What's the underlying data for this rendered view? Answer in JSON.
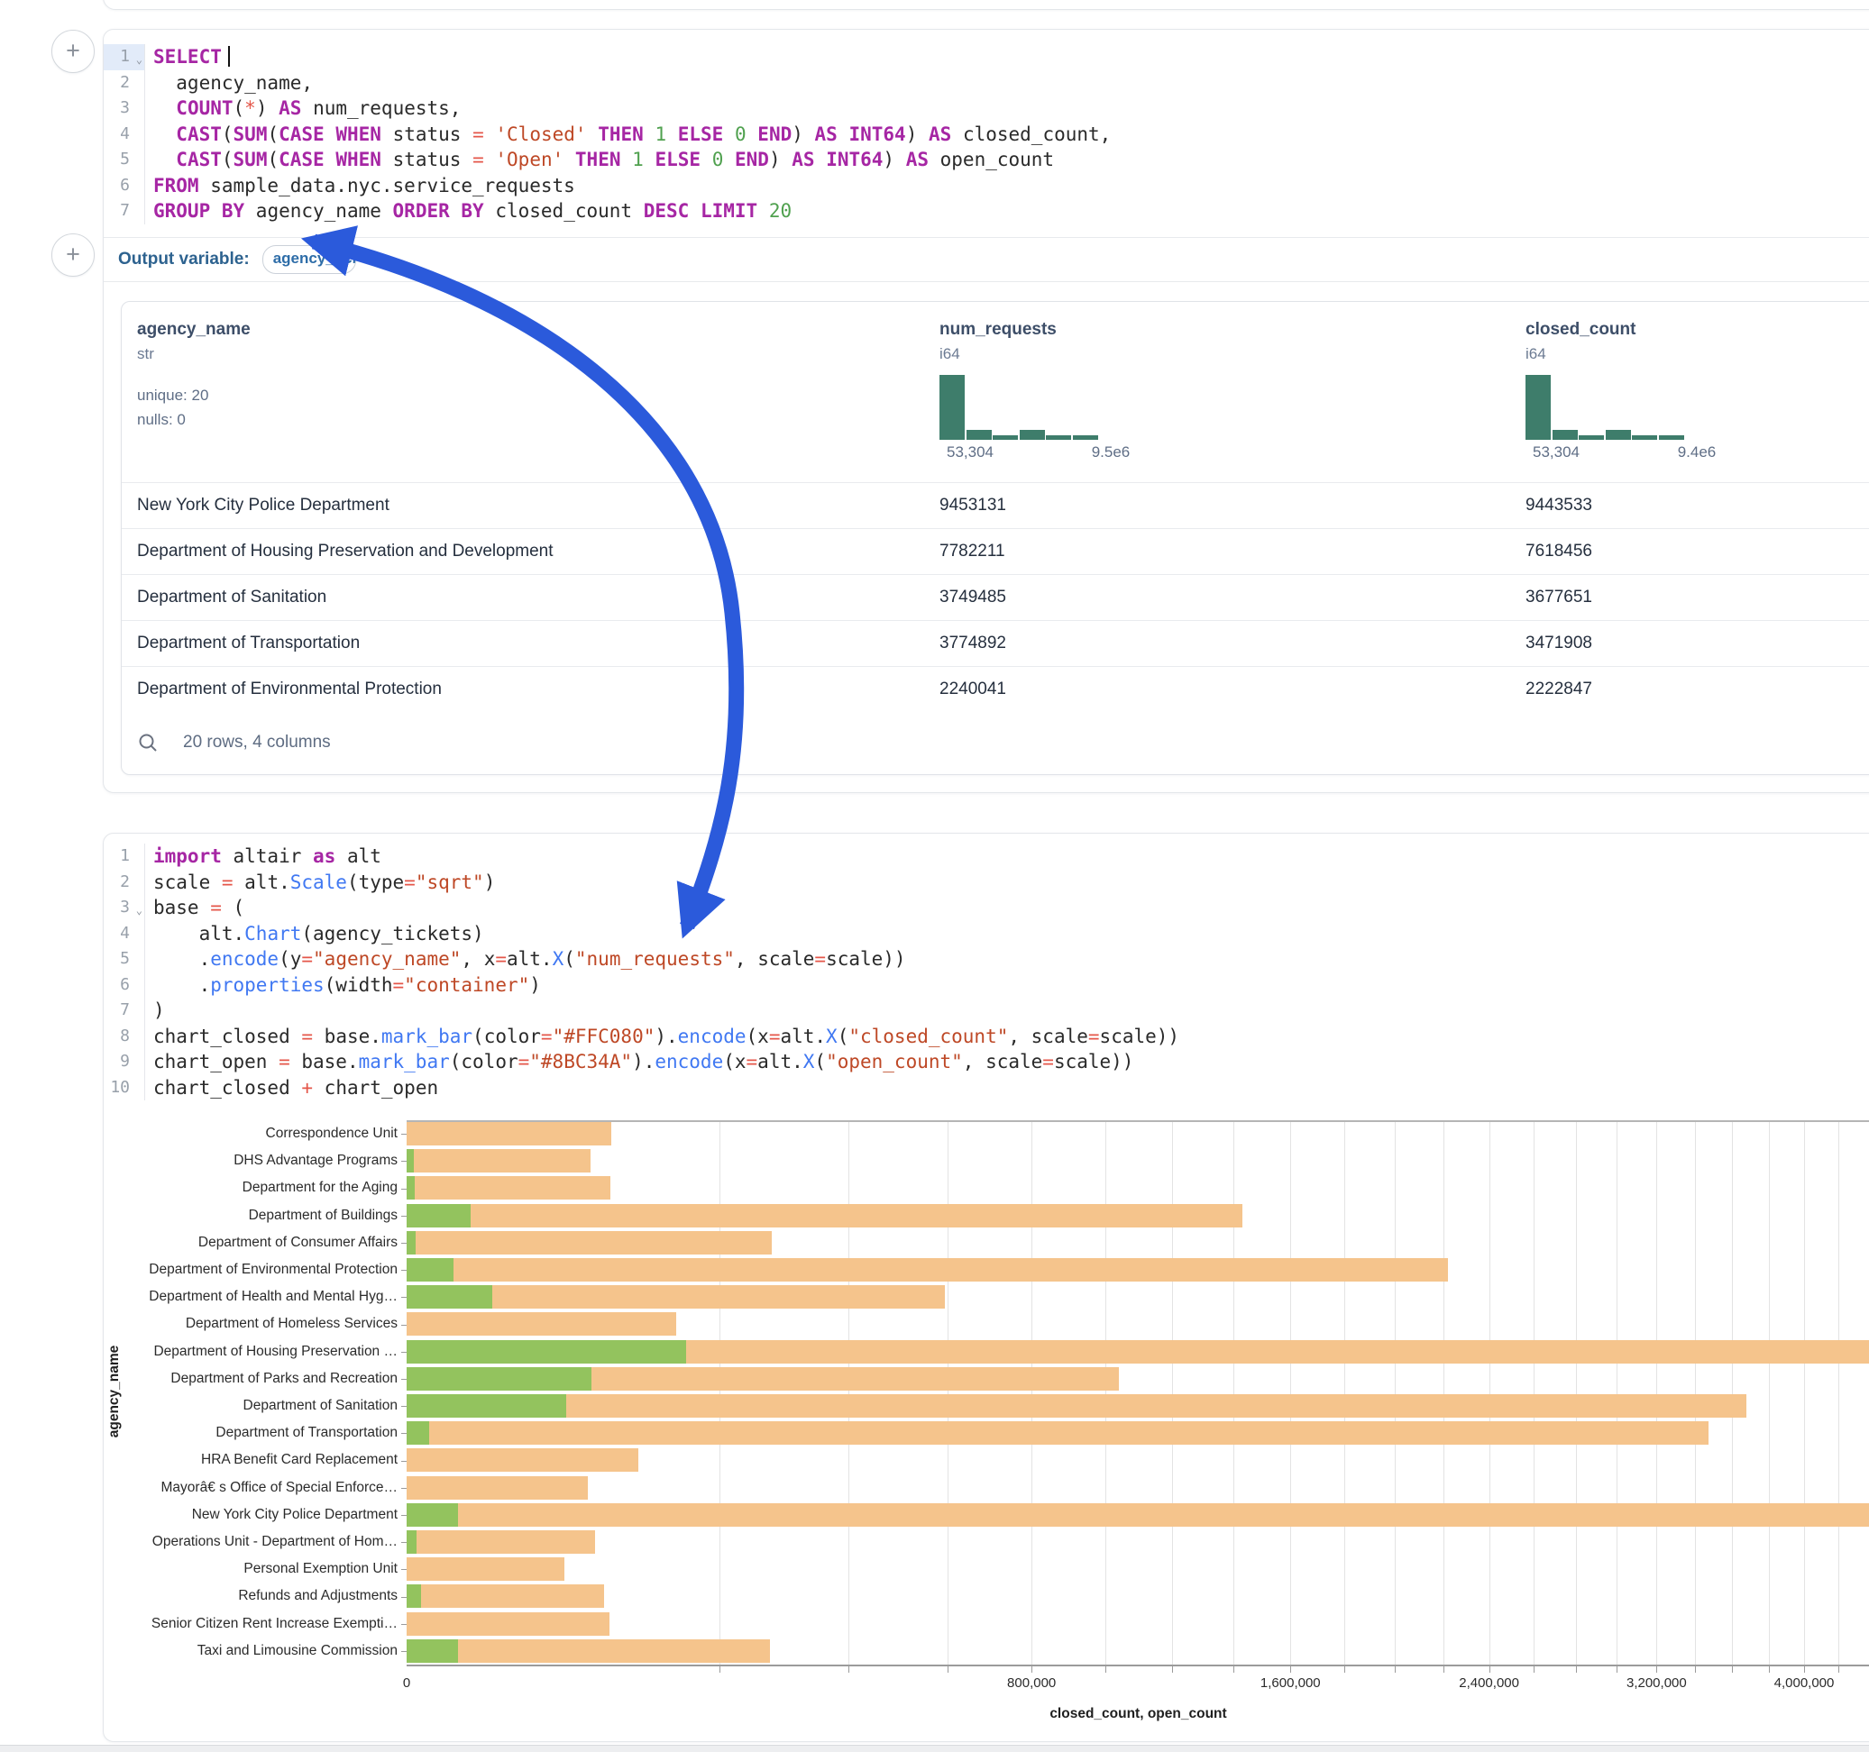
{
  "icons": {
    "plus": "+",
    "fold_chevron": "⌄",
    "search": "magnifier"
  },
  "colors": {
    "arrow": "#2B5ADB",
    "histogram_bar": "#3E7D6B",
    "bar_closed": "#F5C48C",
    "bar_open": "#93C35E",
    "active_line_bg": "#E2EBF9"
  },
  "sql_cell": {
    "output_variable_label": "Output variable:",
    "output_variable_value": "agency_tickets",
    "lines": [
      {
        "n": "1",
        "fold": true,
        "active": true,
        "tokens": [
          [
            "kw",
            "SELECT"
          ],
          [
            "caret",
            ""
          ]
        ]
      },
      {
        "n": "2",
        "tokens": [
          [
            "pl",
            "  agency_name,"
          ]
        ]
      },
      {
        "n": "3",
        "tokens": [
          [
            "pl",
            "  "
          ],
          [
            "kw",
            "COUNT"
          ],
          [
            "pl",
            "("
          ],
          [
            "op",
            "*"
          ],
          [
            "pl",
            ") "
          ],
          [
            "kw",
            "AS"
          ],
          [
            "pl",
            " num_requests,"
          ]
        ]
      },
      {
        "n": "4",
        "tokens": [
          [
            "pl",
            "  "
          ],
          [
            "kw",
            "CAST"
          ],
          [
            "pl",
            "("
          ],
          [
            "kw",
            "SUM"
          ],
          [
            "pl",
            "("
          ],
          [
            "kw",
            "CASE WHEN"
          ],
          [
            "pl",
            " status "
          ],
          [
            "op",
            "="
          ],
          [
            "pl",
            " "
          ],
          [
            "str",
            "'Closed'"
          ],
          [
            "pl",
            " "
          ],
          [
            "kw",
            "THEN"
          ],
          [
            "pl",
            " "
          ],
          [
            "num",
            "1"
          ],
          [
            "pl",
            " "
          ],
          [
            "kw",
            "ELSE"
          ],
          [
            "pl",
            " "
          ],
          [
            "num",
            "0"
          ],
          [
            "pl",
            " "
          ],
          [
            "kw",
            "END"
          ],
          [
            "pl",
            ") "
          ],
          [
            "kw",
            "AS"
          ],
          [
            "pl",
            " "
          ],
          [
            "kw",
            "INT64"
          ],
          [
            "pl",
            ") "
          ],
          [
            "kw",
            "AS"
          ],
          [
            "pl",
            " closed_count,"
          ]
        ]
      },
      {
        "n": "5",
        "tokens": [
          [
            "pl",
            "  "
          ],
          [
            "kw",
            "CAST"
          ],
          [
            "pl",
            "("
          ],
          [
            "kw",
            "SUM"
          ],
          [
            "pl",
            "("
          ],
          [
            "kw",
            "CASE WHEN"
          ],
          [
            "pl",
            " status "
          ],
          [
            "op",
            "="
          ],
          [
            "pl",
            " "
          ],
          [
            "str",
            "'Open'"
          ],
          [
            "pl",
            " "
          ],
          [
            "kw",
            "THEN"
          ],
          [
            "pl",
            " "
          ],
          [
            "num",
            "1"
          ],
          [
            "pl",
            " "
          ],
          [
            "kw",
            "ELSE"
          ],
          [
            "pl",
            " "
          ],
          [
            "num",
            "0"
          ],
          [
            "pl",
            " "
          ],
          [
            "kw",
            "END"
          ],
          [
            "pl",
            ") "
          ],
          [
            "kw",
            "AS"
          ],
          [
            "pl",
            " "
          ],
          [
            "kw",
            "INT64"
          ],
          [
            "pl",
            ") "
          ],
          [
            "kw",
            "AS"
          ],
          [
            "pl",
            " open_count"
          ]
        ]
      },
      {
        "n": "6",
        "tokens": [
          [
            "kw",
            "FROM"
          ],
          [
            "pl",
            " sample_data.nyc.service_requests"
          ]
        ]
      },
      {
        "n": "7",
        "tokens": [
          [
            "kw",
            "GROUP BY"
          ],
          [
            "pl",
            " agency_name "
          ],
          [
            "kw",
            "ORDER BY"
          ],
          [
            "pl",
            " closed_count "
          ],
          [
            "kw",
            "DESC"
          ],
          [
            "pl",
            " "
          ],
          [
            "kw",
            "LIMIT"
          ],
          [
            "pl",
            " "
          ],
          [
            "num",
            "20"
          ]
        ]
      }
    ]
  },
  "result_table": {
    "columns": [
      {
        "name": "agency_name",
        "type": "str",
        "stats": [
          "unique: 20",
          "nulls: 0"
        ]
      },
      {
        "name": "num_requests",
        "type": "i64",
        "hist": {
          "bars": [
            1,
            0.155,
            0.07,
            0.155,
            0.07,
            0.07
          ],
          "min_label": "53,304",
          "max_label": "9.5e6"
        }
      },
      {
        "name": "closed_count",
        "type": "i64",
        "hist": {
          "bars": [
            1,
            0.155,
            0.07,
            0.155,
            0.07,
            0.07
          ],
          "min_label": "53,304",
          "max_label": "9.4e6"
        }
      }
    ],
    "rows": [
      [
        "New York City Police Department",
        "9453131",
        "9443533"
      ],
      [
        "Department of Housing Preservation and Development",
        "7782211",
        "7618456"
      ],
      [
        "Department of Sanitation",
        "3749485",
        "3677651"
      ],
      [
        "Department of Transportation",
        "3774892",
        "3471908"
      ],
      [
        "Department of Environmental Protection",
        "2240041",
        "2222847"
      ]
    ],
    "footer_text": "20 rows, 4 columns"
  },
  "python_cell": {
    "lines": [
      {
        "n": "1",
        "tokens": [
          [
            "kw",
            "import"
          ],
          [
            "pl",
            " altair "
          ],
          [
            "kw",
            "as"
          ],
          [
            "pl",
            " alt"
          ]
        ]
      },
      {
        "n": "2",
        "tokens": [
          [
            "pl",
            "scale "
          ],
          [
            "op",
            "="
          ],
          [
            "pl",
            " alt."
          ],
          [
            "fn",
            "Scale"
          ],
          [
            "pl",
            "(type"
          ],
          [
            "op",
            "="
          ],
          [
            "str",
            "\"sqrt\""
          ],
          [
            "pl",
            ")"
          ]
        ]
      },
      {
        "n": "3",
        "fold": true,
        "tokens": [
          [
            "pl",
            "base "
          ],
          [
            "op",
            "="
          ],
          [
            "pl",
            " ("
          ]
        ]
      },
      {
        "n": "4",
        "tokens": [
          [
            "pl",
            "    alt."
          ],
          [
            "fn",
            "Chart"
          ],
          [
            "pl",
            "(agency_tickets)"
          ]
        ]
      },
      {
        "n": "5",
        "tokens": [
          [
            "pl",
            "    ."
          ],
          [
            "fn",
            "encode"
          ],
          [
            "pl",
            "(y"
          ],
          [
            "op",
            "="
          ],
          [
            "str",
            "\"agency_name\""
          ],
          [
            "pl",
            ", x"
          ],
          [
            "op",
            "="
          ],
          [
            "pl",
            "alt."
          ],
          [
            "fn",
            "X"
          ],
          [
            "pl",
            "("
          ],
          [
            "str",
            "\"num_requests\""
          ],
          [
            "pl",
            ", scale"
          ],
          [
            "op",
            "="
          ],
          [
            "pl",
            "scale))"
          ]
        ]
      },
      {
        "n": "6",
        "tokens": [
          [
            "pl",
            "    ."
          ],
          [
            "fn",
            "properties"
          ],
          [
            "pl",
            "(width"
          ],
          [
            "op",
            "="
          ],
          [
            "str",
            "\"container\""
          ],
          [
            "pl",
            ")"
          ]
        ]
      },
      {
        "n": "7",
        "tokens": [
          [
            "pl",
            ")"
          ]
        ]
      },
      {
        "n": "8",
        "tokens": [
          [
            "pl",
            "chart_closed "
          ],
          [
            "op",
            "="
          ],
          [
            "pl",
            " base."
          ],
          [
            "fn",
            "mark_bar"
          ],
          [
            "pl",
            "(color"
          ],
          [
            "op",
            "="
          ],
          [
            "str",
            "\"#FFC080\""
          ],
          [
            "pl",
            ")."
          ],
          [
            "fn",
            "encode"
          ],
          [
            "pl",
            "(x"
          ],
          [
            "op",
            "="
          ],
          [
            "pl",
            "alt."
          ],
          [
            "fn",
            "X"
          ],
          [
            "pl",
            "("
          ],
          [
            "str",
            "\"closed_count\""
          ],
          [
            "pl",
            ", scale"
          ],
          [
            "op",
            "="
          ],
          [
            "pl",
            "scale))"
          ]
        ]
      },
      {
        "n": "9",
        "tokens": [
          [
            "pl",
            "chart_open "
          ],
          [
            "op",
            "="
          ],
          [
            "pl",
            " base."
          ],
          [
            "fn",
            "mark_bar"
          ],
          [
            "pl",
            "(color"
          ],
          [
            "op",
            "="
          ],
          [
            "str",
            "\"#8BC34A\""
          ],
          [
            "pl",
            ")."
          ],
          [
            "fn",
            "encode"
          ],
          [
            "pl",
            "(x"
          ],
          [
            "op",
            "="
          ],
          [
            "pl",
            "alt."
          ],
          [
            "fn",
            "X"
          ],
          [
            "pl",
            "("
          ],
          [
            "str",
            "\"open_count\""
          ],
          [
            "pl",
            ", scale"
          ],
          [
            "op",
            "="
          ],
          [
            "pl",
            "scale))"
          ]
        ]
      },
      {
        "n": "10",
        "tokens": [
          [
            "pl",
            "chart_closed "
          ],
          [
            "op",
            "+"
          ],
          [
            "pl",
            " chart_open"
          ]
        ]
      }
    ]
  },
  "chart_data": {
    "type": "bar",
    "orientation": "horizontal",
    "xlabel": "closed_count, open_count",
    "ylabel": "agency_name",
    "x_scale": "sqrt",
    "x_tick_values": [
      0,
      800000,
      1600000,
      2400000,
      3200000,
      4000000
    ],
    "x_tick_labels": [
      "0",
      "800,000",
      "1,600,000",
      "2,400,000",
      "3,200,000",
      "4,000,000"
    ],
    "minor_grid_step": 200000,
    "categories": [
      "Correspondence Unit",
      "DHS Advantage Programs",
      "Department for the Aging",
      "Department of Buildings",
      "Department of Consumer Affairs",
      "Department of Environmental Protection",
      "Department of Health and Mental Hyg…",
      "Department of Homeless Services",
      "Department of Housing Preservation …",
      "Department of Parks and Recreation",
      "Department of Sanitation",
      "Department of Transportation",
      "HRA Benefit Card Replacement",
      "Mayorâ€ s Office of Special Enforce…",
      "New York City Police Department",
      "Operations Unit - Department of Hom…",
      "Personal Exemption Unit",
      "Refunds and Adjustments",
      "Senior Citizen Rent Increase Exempti…",
      "Taxi and Limousine Commission"
    ],
    "series": [
      {
        "name": "closed_count",
        "color": "#F5C48C",
        "values": [
          86000,
          69000,
          85000,
          1430000,
          273000,
          2222847,
          593000,
          149000,
          7618456,
          1040000,
          3677651,
          3471908,
          110000,
          67000,
          9443533,
          73000,
          51000,
          80000,
          84000,
          270000
        ]
      },
      {
        "name": "open_count",
        "color": "#93C35E",
        "values": [
          0,
          110,
          150,
          8500,
          170,
          4500,
          15000,
          0,
          160000,
          70000,
          52000,
          1000,
          0,
          0,
          5400,
          200,
          0,
          400,
          0,
          5400
        ]
      }
    ]
  },
  "annotation": {
    "type": "hand-drawn-arrow",
    "color": "#2B5ADB"
  }
}
